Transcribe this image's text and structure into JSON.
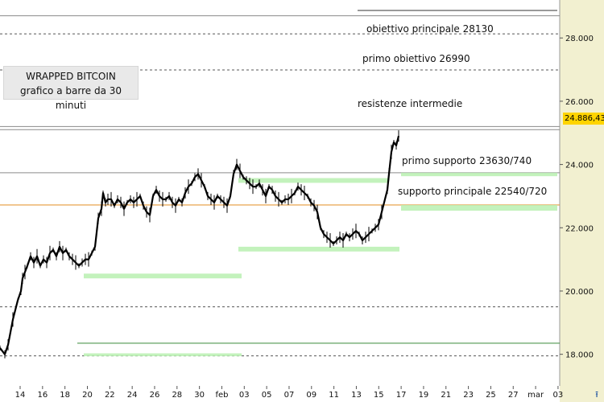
{
  "chart_data": {
    "type": "bar",
    "title": "WRAPPED BITCOIN",
    "subtitle": "grafico a barre da 30 minuti",
    "last_price_label": "24.886,43",
    "ylim": [
      17000,
      29200
    ],
    "y_ticks": [
      {
        "value": 18000,
        "label": "18.000"
      },
      {
        "value": 20000,
        "label": "20.000"
      },
      {
        "value": 22000,
        "label": "22.000"
      },
      {
        "value": 24000,
        "label": "24.000"
      },
      {
        "value": 26000,
        "label": "26.000"
      },
      {
        "value": 28000,
        "label": "28.000"
      }
    ],
    "x_ticks": [
      "14",
      "16",
      "18",
      "20",
      "22",
      "24",
      "26",
      "28",
      "30",
      "feb",
      "03",
      "05",
      "07",
      "09",
      "11",
      "13",
      "15",
      "17",
      "19",
      "21",
      "23",
      "25",
      "27",
      "mar",
      "03"
    ],
    "annotations": [
      {
        "text": "obiettivo principale 28130",
        "value": 28130
      },
      {
        "text": "primo obiettivo 26990",
        "value": 26990
      },
      {
        "text": "resistenze intermedie",
        "value": 25200
      },
      {
        "text": "primo supporto 23630/740",
        "value": 23630
      },
      {
        "text": "supporto principale 22540/720",
        "value": 22540
      }
    ],
    "price_series": [
      [
        0,
        18200
      ],
      [
        6,
        18000
      ],
      [
        10,
        18300
      ],
      [
        16,
        19100
      ],
      [
        22,
        19700
      ],
      [
        26,
        20000
      ],
      [
        28,
        20400
      ],
      [
        31,
        20600
      ],
      [
        34,
        20800
      ],
      [
        38,
        21100
      ],
      [
        42,
        20900
      ],
      [
        46,
        21100
      ],
      [
        50,
        20800
      ],
      [
        54,
        21000
      ],
      [
        58,
        20900
      ],
      [
        62,
        21200
      ],
      [
        66,
        21300
      ],
      [
        70,
        21100
      ],
      [
        74,
        21400
      ],
      [
        78,
        21200
      ],
      [
        82,
        21300
      ],
      [
        86,
        21100
      ],
      [
        90,
        21000
      ],
      [
        94,
        20900
      ],
      [
        98,
        20800
      ],
      [
        102,
        20900
      ],
      [
        106,
        21000
      ],
      [
        110,
        21000
      ],
      [
        114,
        21200
      ],
      [
        118,
        21400
      ],
      [
        122,
        22300
      ],
      [
        126,
        22600
      ],
      [
        128,
        23100
      ],
      [
        131,
        22800
      ],
      [
        134,
        22900
      ],
      [
        138,
        22900
      ],
      [
        142,
        22700
      ],
      [
        146,
        22900
      ],
      [
        150,
        22800
      ],
      [
        154,
        22600
      ],
      [
        158,
        22800
      ],
      [
        162,
        22900
      ],
      [
        166,
        22800
      ],
      [
        170,
        22900
      ],
      [
        174,
        23000
      ],
      [
        178,
        22700
      ],
      [
        182,
        22500
      ],
      [
        186,
        22400
      ],
      [
        190,
        23000
      ],
      [
        194,
        23200
      ],
      [
        198,
        23000
      ],
      [
        202,
        22900
      ],
      [
        206,
        22900
      ],
      [
        210,
        23000
      ],
      [
        214,
        22800
      ],
      [
        218,
        22700
      ],
      [
        222,
        22900
      ],
      [
        226,
        22800
      ],
      [
        230,
        23100
      ],
      [
        234,
        23300
      ],
      [
        238,
        23400
      ],
      [
        242,
        23600
      ],
      [
        246,
        23700
      ],
      [
        250,
        23500
      ],
      [
        254,
        23300
      ],
      [
        258,
        23000
      ],
      [
        262,
        22900
      ],
      [
        266,
        22800
      ],
      [
        270,
        23000
      ],
      [
        274,
        22900
      ],
      [
        278,
        22800
      ],
      [
        282,
        22700
      ],
      [
        286,
        23000
      ],
      [
        290,
        23700
      ],
      [
        294,
        24000
      ],
      [
        298,
        23800
      ],
      [
        302,
        23600
      ],
      [
        306,
        23500
      ],
      [
        310,
        23400
      ],
      [
        314,
        23300
      ],
      [
        318,
        23300
      ],
      [
        322,
        23400
      ],
      [
        326,
        23200
      ],
      [
        330,
        23000
      ],
      [
        334,
        23300
      ],
      [
        338,
        23200
      ],
      [
        342,
        23000
      ],
      [
        346,
        22900
      ],
      [
        350,
        22800
      ],
      [
        354,
        22900
      ],
      [
        358,
        22900
      ],
      [
        362,
        23000
      ],
      [
        366,
        23100
      ],
      [
        370,
        23300
      ],
      [
        374,
        23200
      ],
      [
        378,
        23100
      ],
      [
        382,
        23000
      ],
      [
        386,
        22800
      ],
      [
        390,
        22700
      ],
      [
        394,
        22500
      ],
      [
        398,
        22000
      ],
      [
        402,
        21800
      ],
      [
        406,
        21700
      ],
      [
        410,
        21600
      ],
      [
        414,
        21500
      ],
      [
        418,
        21600
      ],
      [
        422,
        21700
      ],
      [
        426,
        21600
      ],
      [
        430,
        21800
      ],
      [
        434,
        21700
      ],
      [
        438,
        21800
      ],
      [
        442,
        21900
      ],
      [
        446,
        21800
      ],
      [
        450,
        21600
      ],
      [
        454,
        21700
      ],
      [
        458,
        21800
      ],
      [
        462,
        21900
      ],
      [
        466,
        22000
      ],
      [
        470,
        22100
      ],
      [
        474,
        22500
      ],
      [
        478,
        22900
      ],
      [
        481,
        23200
      ],
      [
        483,
        23700
      ],
      [
        486,
        24400
      ],
      [
        489,
        24700
      ],
      [
        492,
        24600
      ],
      [
        495,
        24900
      ]
    ],
    "levels": [
      {
        "value": 28700,
        "x0": 0,
        "x1": 695,
        "style": "line"
      },
      {
        "value": 28130,
        "x0": 0,
        "x1": 695,
        "style": "dash"
      },
      {
        "value": 26990,
        "x0": 0,
        "x1": 695,
        "style": "dash"
      },
      {
        "value": 25200,
        "x0": 0,
        "x1": 695,
        "style": "line"
      },
      {
        "value": 25100,
        "x0": 0,
        "x1": 695,
        "style": "line"
      },
      {
        "value": 23740,
        "x0": 0,
        "x1": 695,
        "style": "line"
      },
      {
        "value": 22720,
        "x0": 0,
        "x1": 695,
        "style": "orange"
      },
      {
        "value": 19500,
        "x0": 0,
        "x1": 695,
        "style": "dash"
      },
      {
        "value": 17950,
        "x0": 0,
        "x1": 695,
        "style": "dash"
      },
      {
        "value": 18350,
        "x0": 96,
        "x1": 695,
        "style": "green"
      }
    ],
    "zones": [
      {
        "low": 20400,
        "high": 20550,
        "x0": 104,
        "x1": 300
      },
      {
        "low": 21250,
        "high": 21400,
        "x0": 296,
        "x1": 496
      },
      {
        "low": 23420,
        "high": 23570,
        "x0": 296,
        "x1": 482
      },
      {
        "low": 23630,
        "high": 23740,
        "x0": 498,
        "x1": 692
      },
      {
        "low": 22540,
        "high": 22720,
        "x0": 498,
        "x1": 692
      },
      {
        "low": 17940,
        "high": 18030,
        "x0": 104,
        "x1": 300
      }
    ]
  },
  "ui": {
    "nav_icon": "scroll-arrow-icon"
  }
}
